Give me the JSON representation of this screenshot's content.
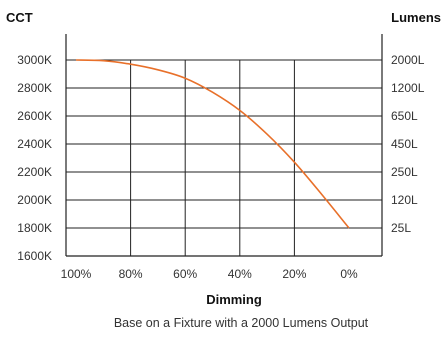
{
  "chart_data": {
    "type": "line",
    "title": "",
    "xlabel": "Dimming",
    "ylabel": "CCT",
    "y2label": "Lumens",
    "caption": "Base on a Fixture with a 2000 Lumens Output",
    "x_ticks": [
      "100%",
      "80%",
      "60%",
      "40%",
      "20%",
      "0%"
    ],
    "x_tick_values": [
      100,
      80,
      60,
      40,
      20,
      0
    ],
    "xlim": [
      100,
      0
    ],
    "y_ticks": [
      "3000K",
      "2800K",
      "2600K",
      "2400K",
      "2200K",
      "2000K",
      "1800K",
      "1600K"
    ],
    "y_tick_values": [
      3000,
      2800,
      2600,
      2400,
      2200,
      2000,
      1800,
      1600
    ],
    "ylim": [
      1600,
      3000
    ],
    "y2_ticks": [
      "2000L",
      "1200L",
      "650L",
      "450L",
      "250L",
      "120L",
      "25L"
    ],
    "grid": true,
    "line_color": "#e8702a",
    "series": [
      {
        "x": [
          100,
          90,
          80,
          70,
          60,
          50,
          40,
          30,
          20,
          10,
          0
        ],
        "values": [
          3000,
          2995,
          2970,
          2930,
          2870,
          2770,
          2640,
          2470,
          2270,
          2040,
          1800
        ]
      }
    ]
  }
}
